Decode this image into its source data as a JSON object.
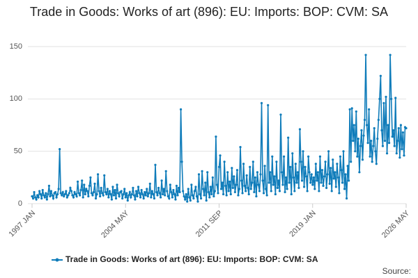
{
  "chart_data": {
    "type": "line",
    "title": "Trade in Goods: Works of art (896): EU: Imports: BOP: CVM: SA",
    "source": "Source:",
    "ylim": [
      0,
      150
    ],
    "yticks": [
      0,
      50,
      100,
      150
    ],
    "grid": true,
    "legend": "bottom",
    "categories": [
      "1997 JAN",
      null,
      null,
      null,
      null,
      null,
      null,
      null,
      null,
      null,
      null,
      null,
      null,
      null,
      null,
      null,
      null,
      null,
      null,
      null,
      null,
      null,
      null,
      null,
      null,
      null,
      null,
      null,
      null,
      null,
      null,
      null,
      null,
      null,
      null,
      null,
      null,
      null,
      null,
      null,
      null,
      null,
      null,
      null,
      null,
      null,
      null,
      null,
      null,
      null,
      null,
      null,
      null,
      null,
      null,
      null,
      null,
      null,
      null,
      null,
      null,
      null,
      null,
      null,
      null,
      null,
      null,
      null,
      null,
      null,
      null,
      null,
      null,
      null,
      null,
      null,
      null,
      null,
      null,
      null,
      null,
      null,
      null,
      null,
      null,
      null,
      null,
      null,
      "2004 MAY",
      null,
      null,
      null,
      null,
      null,
      null,
      null,
      null,
      null,
      null,
      null,
      null,
      null,
      null,
      null,
      null,
      null,
      null,
      null,
      null,
      null,
      null,
      null,
      null,
      null,
      null,
      null,
      null,
      null,
      null,
      null,
      null,
      null,
      null,
      null,
      null,
      null,
      null,
      null,
      null,
      null,
      null,
      null,
      null,
      null,
      null,
      null,
      null,
      null,
      null,
      null,
      null,
      null,
      null,
      null,
      null,
      null,
      null,
      null,
      null,
      null,
      null,
      null,
      null,
      null,
      null,
      null,
      null,
      null,
      null,
      null,
      null,
      null,
      null,
      null,
      null,
      null,
      null,
      null,
      null,
      null,
      null,
      null,
      null,
      null,
      null,
      null,
      "2011 SEP",
      null,
      null,
      null,
      null,
      null,
      null,
      null,
      null,
      null,
      null,
      null,
      null,
      null,
      null,
      null,
      null,
      null,
      null,
      null,
      null,
      null,
      null,
      null,
      null,
      null,
      null,
      null,
      null,
      null,
      null,
      null,
      null,
      null,
      null,
      null,
      null,
      null,
      null,
      null,
      null,
      null,
      null,
      null,
      null,
      null,
      null,
      null,
      null,
      null,
      null,
      null,
      null,
      null,
      null,
      null,
      null,
      null,
      null,
      null,
      null,
      null,
      null,
      null,
      null,
      null,
      null,
      null,
      null,
      null,
      null,
      null,
      null,
      null,
      null,
      null,
      null,
      null,
      null,
      null,
      null,
      null,
      null,
      null,
      null,
      null,
      null,
      null,
      "2019 JAN",
      null,
      null,
      null,
      null,
      null,
      null,
      null,
      null,
      null,
      null,
      null,
      null,
      null,
      null,
      null,
      null,
      null,
      null,
      null,
      null,
      null,
      null,
      null,
      null,
      null,
      null,
      null,
      null,
      null,
      null,
      null,
      null,
      null,
      null,
      null,
      null,
      null,
      null,
      null,
      null,
      null,
      null,
      null,
      null,
      null,
      null,
      null,
      null,
      null,
      null,
      null,
      null,
      null,
      null,
      null,
      null,
      null,
      null,
      null,
      null,
      null,
      null,
      null,
      null,
      null,
      null,
      null,
      null,
      null,
      null,
      null,
      null,
      null,
      null,
      null,
      null,
      null,
      null,
      null,
      null,
      null,
      null,
      null,
      null,
      null,
      null,
      null,
      "2026 MAY"
    ],
    "series": [
      {
        "name": "Trade in Goods: Works of art (896): EU: Imports: BOP: CVM: SA",
        "color": "#0f7cba",
        "values": [
          7,
          5,
          11,
          6,
          4,
          8,
          6,
          12,
          9,
          5,
          13,
          8,
          6,
          10,
          4,
          9,
          17,
          7,
          12,
          8,
          5,
          10,
          11,
          6,
          9,
          14,
          52,
          10,
          8,
          11,
          7,
          9,
          12,
          6,
          8,
          10,
          15,
          12,
          8,
          6,
          11,
          9,
          7,
          21,
          10,
          8,
          13,
          22,
          6,
          18,
          9,
          14,
          12,
          7,
          17,
          25,
          10,
          8,
          11,
          19,
          5,
          9,
          28,
          12,
          7,
          15,
          10,
          8,
          27,
          11,
          9,
          14,
          6,
          12,
          9,
          4,
          16,
          8,
          13,
          5,
          18,
          10,
          7,
          11,
          12,
          5,
          9,
          14,
          6,
          10,
          3,
          8,
          11,
          6,
          9,
          15,
          8,
          4,
          12,
          7,
          16,
          10,
          6,
          13,
          9,
          5,
          11,
          8,
          14,
          7,
          10,
          19,
          6,
          12,
          9,
          5,
          37,
          11,
          8,
          15,
          10,
          6,
          22,
          9,
          14,
          8,
          31,
          12,
          7,
          5,
          18,
          11,
          6,
          13,
          9,
          4,
          17,
          8,
          15,
          11,
          90,
          40,
          12,
          7,
          4,
          9,
          2,
          14,
          6,
          3,
          18,
          8,
          5,
          12,
          16,
          7,
          2,
          28,
          9,
          5,
          31,
          14,
          8,
          20,
          3,
          30,
          11,
          6,
          16,
          9,
          25,
          7,
          12,
          64,
          18,
          10,
          35,
          46,
          14,
          20,
          9,
          40,
          17,
          8,
          30,
          12,
          21,
          9,
          34,
          15,
          26,
          11,
          18,
          32,
          8,
          14,
          54,
          22,
          10,
          38,
          17,
          12,
          27,
          15,
          9,
          35,
          14,
          20,
          40,
          11,
          25,
          7,
          30,
          18,
          12,
          28,
          96,
          22,
          10,
          36,
          14,
          8,
          94,
          20,
          30,
          12,
          45,
          18,
          26,
          9,
          40,
          15,
          22,
          12,
          85,
          30,
          18,
          45,
          11,
          25,
          14,
          63,
          20,
          35,
          9,
          48,
          25,
          12,
          38,
          20,
          30,
          15,
          71,
          40,
          22,
          50,
          16,
          35,
          26,
          12,
          45,
          30,
          20,
          28,
          18,
          25,
          14,
          38,
          22,
          30,
          12,
          45,
          20,
          32,
          17,
          26,
          40,
          15,
          28,
          50,
          19,
          34,
          12,
          42,
          24,
          30,
          16,
          38,
          25,
          10,
          45,
          32,
          20,
          50,
          14,
          28,
          5,
          36,
          22,
          90,
          40,
          91,
          60,
          75,
          50,
          88,
          45,
          62,
          30,
          55,
          70,
          42,
          65,
          80,
          142,
          75,
          58,
          90,
          45,
          60,
          40,
          55,
          72,
          50,
          38,
          62,
          80,
          100,
          122,
          70,
          55,
          96,
          60,
          102,
          48,
          75,
          58,
          142,
          100,
          64,
          70,
          55,
          101,
          48,
          60,
          72,
          44,
          75,
          52,
          68,
          46,
          73,
          72
        ]
      }
    ]
  }
}
